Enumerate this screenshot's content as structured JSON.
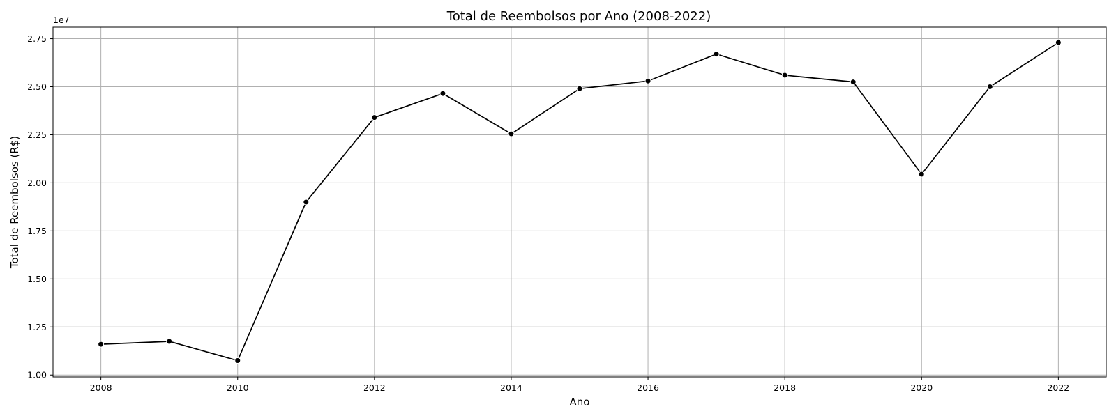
{
  "chart_data": {
    "type": "line",
    "title": "Total de Reembolsos por Ano (2008-2022)",
    "xlabel": "Ano",
    "ylabel": "Total de Reembolsos (R$)",
    "y_offset_label": "1e7",
    "x": [
      2008,
      2009,
      2010,
      2011,
      2012,
      2013,
      2014,
      2015,
      2016,
      2017,
      2018,
      2019,
      2020,
      2021,
      2022
    ],
    "series": [
      {
        "values": [
          11600000,
          11750000,
          10750000,
          19000000,
          23400000,
          24650000,
          22550000,
          24900000,
          25300000,
          26700000,
          25600000,
          25250000,
          20450000,
          25000000,
          27300000
        ]
      }
    ],
    "xticks": [
      2008,
      2010,
      2012,
      2014,
      2016,
      2018,
      2020,
      2022
    ],
    "yticks": [
      10000000,
      12500000,
      15000000,
      17500000,
      20000000,
      22500000,
      25000000,
      27500000
    ],
    "ytick_labels": [
      "1.00",
      "1.25",
      "1.50",
      "1.75",
      "2.00",
      "2.25",
      "2.50",
      "2.75"
    ],
    "xlim": [
      2007.3,
      2022.7
    ],
    "ylim": [
      9900000,
      28100000
    ],
    "grid": true,
    "colors": {
      "line": "#000000",
      "grid": "#b0b0b0"
    }
  }
}
